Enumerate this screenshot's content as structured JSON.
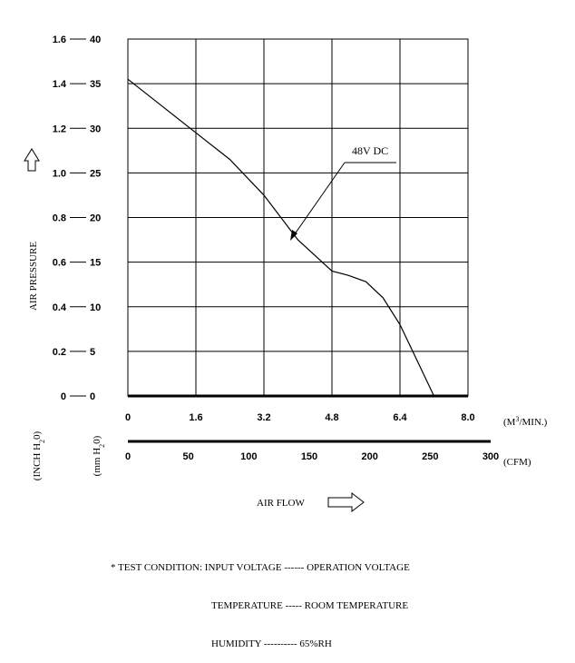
{
  "chart_data": {
    "type": "line",
    "series": [
      {
        "name": "48V DC",
        "x_m3min": [
          0,
          0.8,
          1.6,
          2.4,
          3.2,
          4.0,
          4.8,
          5.2,
          5.6,
          6.0,
          6.4,
          6.8,
          7.2
        ],
        "y_mmH2O": [
          35.5,
          32.5,
          29.5,
          26.5,
          22.5,
          17.5,
          14.0,
          13.5,
          12.8,
          11.0,
          8.0,
          4.0,
          0.0
        ]
      }
    ],
    "annotation": "48V DC",
    "y_label": "AIR PRESSURE",
    "y_unit_inch": "(INCH H",
    "y_unit_inch_sub": "2",
    "y_unit_inch_end": "0)",
    "y_unit_mm": "(mm H",
    "y_unit_mm_sub": "2",
    "y_unit_mm_end": "0)",
    "y_ticks_inch": [
      "0",
      "0.2",
      "0.4",
      "0.6",
      "0.8",
      "1.0",
      "1.2",
      "1.4",
      "1.6"
    ],
    "y_ticks_mm": [
      "0",
      "5",
      "10",
      "15",
      "20",
      "25",
      "30",
      "35",
      "40"
    ],
    "ylim_mmH2O": [
      0,
      40
    ],
    "x_ticks_m3": [
      "0",
      "1.6",
      "3.2",
      "4.8",
      "6.4",
      "8.0"
    ],
    "x_unit_m3_pre": "(M",
    "x_unit_m3_sup": "3",
    "x_unit_m3_post": "/MIN.)",
    "xlim_m3min": [
      0,
      8
    ],
    "x_ticks_cfm": [
      "0",
      "50",
      "100",
      "150",
      "200",
      "250",
      "300"
    ],
    "x_unit_cfm": "(CFM)",
    "x_label": "AIR FLOW",
    "grid": true,
    "grid_cols": 5,
    "grid_rows": 8
  },
  "test_condition": {
    "prefix": "* TEST CONDITION:",
    "rows": [
      {
        "label": "INPUT VOLTAGE",
        "dashes": " ------ ",
        "value": "OPERATION VOLTAGE"
      },
      {
        "label": "TEMPERATURE",
        "dashes": " ----- ",
        "value": "ROOM TEMPERATURE"
      },
      {
        "label": "HUMIDITY",
        "dashes": " ---------- ",
        "value": "65%RH"
      }
    ]
  }
}
